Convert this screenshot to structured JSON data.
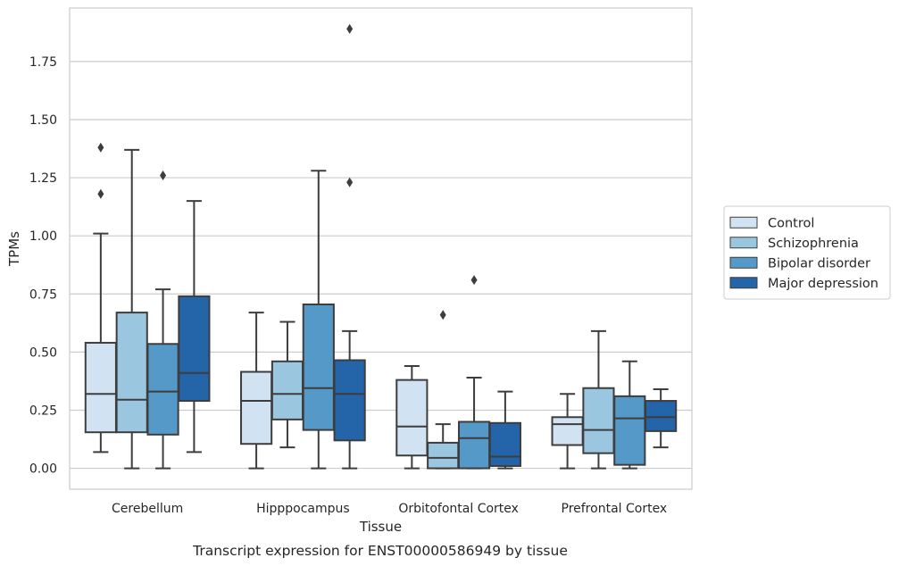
{
  "caption": "Transcript expression for ENST00000586949 by tissue",
  "chart_data": {
    "type": "boxplot",
    "xlabel": "Tissue",
    "ylabel": "TPMs",
    "ylim": [
      -0.09,
      1.98
    ],
    "yticks": [
      0.0,
      0.25,
      0.5,
      0.75,
      1.0,
      1.25,
      1.5,
      1.75
    ],
    "ytick_labels": [
      "0.00",
      "0.25",
      "0.50",
      "0.75",
      "1.00",
      "1.25",
      "1.50",
      "1.75"
    ],
    "grid": "horizontal",
    "legend_position": "right-outside",
    "categories": [
      "Cerebellum",
      "Hipppocampus",
      "Orbitofontal Cortex",
      "Prefrontal Cortex"
    ],
    "series": [
      {
        "name": "Control",
        "color": "#d1e2f2",
        "boxes": [
          {
            "whislo": 0.07,
            "q1": 0.155,
            "median": 0.32,
            "q3": 0.54,
            "whishi": 1.01,
            "fliers": [
              1.18,
              1.38
            ]
          },
          {
            "whislo": 0.0,
            "q1": 0.105,
            "median": 0.29,
            "q3": 0.415,
            "whishi": 0.67,
            "fliers": []
          },
          {
            "whislo": 0.0,
            "q1": 0.055,
            "median": 0.18,
            "q3": 0.38,
            "whishi": 0.44,
            "fliers": []
          },
          {
            "whislo": 0.0,
            "q1": 0.1,
            "median": 0.19,
            "q3": 0.22,
            "whishi": 0.32,
            "fliers": []
          }
        ]
      },
      {
        "name": "Schizophrenia",
        "color": "#9bc6e0",
        "boxes": [
          {
            "whislo": 0.0,
            "q1": 0.155,
            "median": 0.295,
            "q3": 0.67,
            "whishi": 1.37,
            "fliers": []
          },
          {
            "whislo": 0.09,
            "q1": 0.21,
            "median": 0.32,
            "q3": 0.46,
            "whishi": 0.63,
            "fliers": []
          },
          {
            "whislo": 0.0,
            "q1": 0.0,
            "median": 0.045,
            "q3": 0.11,
            "whishi": 0.19,
            "fliers": [
              0.66
            ]
          },
          {
            "whislo": 0.0,
            "q1": 0.065,
            "median": 0.165,
            "q3": 0.345,
            "whishi": 0.59,
            "fliers": []
          }
        ]
      },
      {
        "name": "Bipolar disorder",
        "color": "#5599c9",
        "boxes": [
          {
            "whislo": 0.0,
            "q1": 0.145,
            "median": 0.33,
            "q3": 0.535,
            "whishi": 0.77,
            "fliers": [
              1.26
            ]
          },
          {
            "whislo": 0.0,
            "q1": 0.165,
            "median": 0.345,
            "q3": 0.705,
            "whishi": 1.28,
            "fliers": []
          },
          {
            "whislo": 0.0,
            "q1": 0.0,
            "median": 0.13,
            "q3": 0.2,
            "whishi": 0.39,
            "fliers": [
              0.81
            ]
          },
          {
            "whislo": 0.0,
            "q1": 0.015,
            "median": 0.215,
            "q3": 0.31,
            "whishi": 0.46,
            "fliers": []
          }
        ]
      },
      {
        "name": "Major depression",
        "color": "#2464a8",
        "boxes": [
          {
            "whislo": 0.07,
            "q1": 0.29,
            "median": 0.41,
            "q3": 0.74,
            "whishi": 1.15,
            "fliers": []
          },
          {
            "whislo": 0.0,
            "q1": 0.12,
            "median": 0.32,
            "q3": 0.465,
            "whishi": 0.59,
            "fliers": [
              1.23,
              1.89
            ]
          },
          {
            "whislo": 0.0,
            "q1": 0.01,
            "median": 0.05,
            "q3": 0.195,
            "whishi": 0.33,
            "fliers": []
          },
          {
            "whislo": 0.09,
            "q1": 0.16,
            "median": 0.22,
            "q3": 0.29,
            "whishi": 0.34,
            "fliers": []
          }
        ]
      }
    ]
  }
}
